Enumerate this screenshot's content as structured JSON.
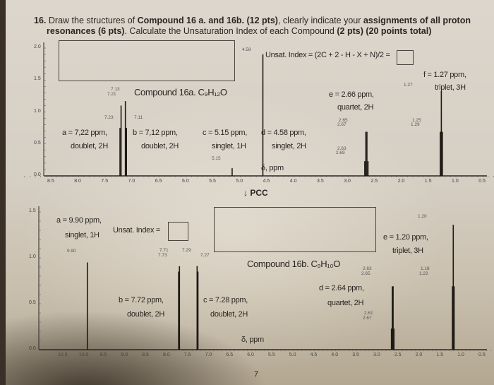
{
  "question": {
    "number": "16.",
    "p1": "Draw the structures of ",
    "b1": "Compound 16 a. and 16b. (12 pts)",
    "p2": ", clearly indicate your ",
    "b2": "assignments of all proton",
    "b3": "resonances (6 pts)",
    "p3": ". Calculate the Unsaturation Index of each Compound ",
    "b4": "(2 pts)",
    "b5": "(20 points total)"
  },
  "reagent": "↓ PCC",
  "page_number": "7",
  "chart_data": [
    {
      "type": "line",
      "title": "Compound 16a. C₉H₁₂O",
      "xlabel": "δ, ppm",
      "xlim": [
        8.5,
        0.5
      ],
      "ylim": [
        0,
        2.0
      ],
      "xticks": [
        "8.5",
        "8.0",
        "7.5",
        "7.0",
        "6.5",
        "6.0",
        "5.5",
        "5.0",
        "4.5",
        "4.0",
        "3.5",
        "3.0",
        "2.5",
        "2.0",
        "1.5",
        "1.0",
        "0.5"
      ],
      "yticks": [
        "2.0",
        "1.5",
        "1.0",
        "0.5",
        "0.0"
      ],
      "unsat_label": "Unsat. Index = (2C + 2 - H - X + N)/2 =",
      "peaks": [
        {
          "ppm": 7.23,
          "height": 0.75
        },
        {
          "ppm": 7.21,
          "height": 1.1
        },
        {
          "ppm": 7.13,
          "height": 1.17
        },
        {
          "ppm": 7.11,
          "height": 0.75
        },
        {
          "ppm": 5.15,
          "height": 0.12
        },
        {
          "ppm": 4.58,
          "height": 1.9
        },
        {
          "ppm": 2.69,
          "height": 0.23
        },
        {
          "ppm": 2.67,
          "height": 0.69
        },
        {
          "ppm": 2.65,
          "height": 0.69
        },
        {
          "ppm": 2.63,
          "height": 0.23
        },
        {
          "ppm": 1.29,
          "height": 0.69
        },
        {
          "ppm": 1.27,
          "height": 1.33
        },
        {
          "ppm": 1.25,
          "height": 0.69
        }
      ],
      "peak_labels": [
        "7.13",
        "7.21",
        "7.23",
        "7.11",
        "5.15",
        "4.58",
        "2.65",
        "2.67",
        "2.63",
        "2.69",
        "1.27",
        "1.25",
        "1.29"
      ],
      "assignments": [
        {
          "line1": "a = 7,22 ppm,",
          "line2": "doublet, 2H"
        },
        {
          "line1": "b = 7,12 ppm,",
          "line2": "doublet, 2H"
        },
        {
          "line1": "c = 5.15 ppm,",
          "line2": "singlet, 1H"
        },
        {
          "line1": "d = 4.58 ppm,",
          "line2": "singlet, 2H"
        },
        {
          "line1": "e = 2.66 ppm,",
          "line2": "quartet, 2H"
        },
        {
          "line1": "f = 1.27 ppm,",
          "line2": "triplet, 3H"
        }
      ]
    },
    {
      "type": "line",
      "title": "Compound 16b. C₉H₁₀O",
      "xlabel": "δ, ppm",
      "xlim": [
        10.5,
        0.5
      ],
      "ylim": [
        0,
        1.5
      ],
      "xticks": [
        "10.5",
        "10.0",
        "9.5",
        "9.0",
        "8.5",
        "8.0",
        "7.5",
        "7.0",
        "6.5",
        "6.0",
        "5.5",
        "5.0",
        "4.5",
        "4.0",
        "3.5",
        "3.0",
        "2.5",
        "2.0",
        "1.5",
        "1.0",
        "0.5"
      ],
      "yticks": [
        "1.5",
        "1.0",
        "0.5",
        "0.0"
      ],
      "unsat_label": "Unsat. Index =",
      "peaks": [
        {
          "ppm": 9.9,
          "height": 0.95
        },
        {
          "ppm": 7.73,
          "height": 0.85
        },
        {
          "ppm": 7.71,
          "height": 0.91
        },
        {
          "ppm": 7.29,
          "height": 0.91
        },
        {
          "ppm": 7.27,
          "height": 0.85
        },
        {
          "ppm": 2.67,
          "height": 0.23
        },
        {
          "ppm": 2.65,
          "height": 0.69
        },
        {
          "ppm": 2.63,
          "height": 0.69
        },
        {
          "ppm": 2.61,
          "height": 0.23
        },
        {
          "ppm": 1.22,
          "height": 0.69
        },
        {
          "ppm": 1.2,
          "height": 1.36
        },
        {
          "ppm": 1.18,
          "height": 0.69
        }
      ],
      "peak_labels": [
        "9.90",
        "7.71",
        "7.73",
        "7.29",
        "7.27",
        "2.63",
        "2.65",
        "2.61",
        "2.67",
        "1.20",
        "1.18",
        "1.22"
      ],
      "assignments": [
        {
          "line1": "a = 9.90 ppm,",
          "line2": "singlet, 1H"
        },
        {
          "line1": "b = 7.72 ppm,",
          "line2": "doublet, 2H"
        },
        {
          "line1": "c = 7.28 ppm,",
          "line2": "doublet, 2H"
        },
        {
          "line1": "d = 2.64 ppm,",
          "line2": "quartet, 2H"
        },
        {
          "line1": "e = 1.20 ppm,",
          "line2": "triplet, 3H"
        }
      ]
    }
  ]
}
